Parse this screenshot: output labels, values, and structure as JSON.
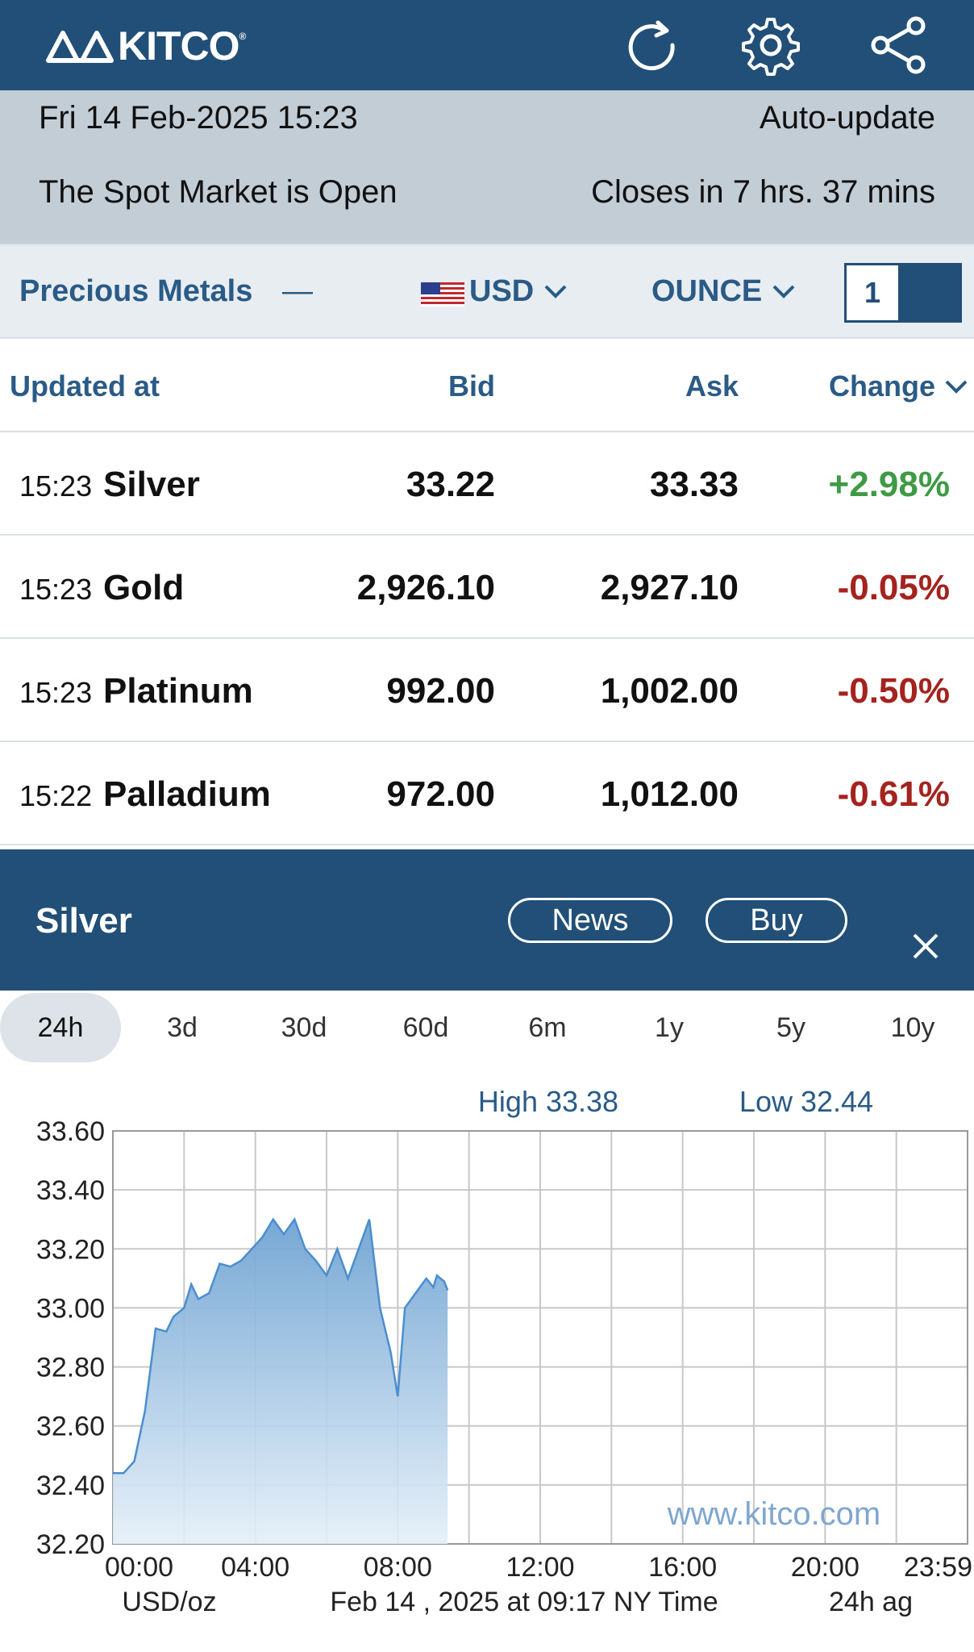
{
  "header": {
    "logo_text": "KITCO",
    "icons": [
      "refresh-icon",
      "gear-icon",
      "share-icon"
    ]
  },
  "status": {
    "datetime": "Fri 14 Feb-2025 15:23",
    "auto_update": "Auto-update",
    "market_status": "The Spot Market is Open",
    "closes_in": "Closes in 7 hrs. 37 mins"
  },
  "toolbar": {
    "category": "Precious Metals",
    "collapse_symbol": "—",
    "currency": "USD",
    "unit": "OUNCE",
    "quantity": "1"
  },
  "table": {
    "headers": {
      "updated": "Updated at",
      "bid": "Bid",
      "ask": "Ask",
      "change": "Change"
    },
    "rows": [
      {
        "time": "15:23",
        "name": "Silver",
        "bid": "33.22",
        "ask": "33.33",
        "change": "+2.98%",
        "direction": "up"
      },
      {
        "time": "15:23",
        "name": "Gold",
        "bid": "2,926.10",
        "ask": "2,927.10",
        "change": "-0.05%",
        "direction": "down"
      },
      {
        "time": "15:23",
        "name": "Platinum",
        "bid": "992.00",
        "ask": "1,002.00",
        "change": "-0.50%",
        "direction": "down"
      },
      {
        "time": "15:22",
        "name": "Palladium",
        "bid": "972.00",
        "ask": "1,012.00",
        "change": "-0.61%",
        "direction": "down"
      }
    ]
  },
  "detail": {
    "title": "Silver",
    "news_label": "News",
    "buy_label": "Buy"
  },
  "range_tabs": [
    "24h",
    "3d",
    "30d",
    "60d",
    "6m",
    "1y",
    "5y",
    "10y"
  ],
  "active_tab": "24h",
  "colors": {
    "header": "#224f78",
    "accent": "#2a5a86",
    "up": "#3f9a46",
    "down": "#a4231f",
    "area": "#6fa3d2"
  },
  "chart_data": {
    "type": "area",
    "high_label": "High 33.38",
    "low_label": "Low 32.44",
    "watermark": "www.kitco.com",
    "ylim": [
      32.2,
      33.6
    ],
    "y_ticks": [
      "33.60",
      "33.40",
      "33.20",
      "33.00",
      "32.80",
      "32.60",
      "32.40",
      "32.20"
    ],
    "x_tick_labels": [
      "00:00",
      "04:00",
      "08:00",
      "12:00",
      "16:00",
      "20:00",
      "23:59"
    ],
    "x_tick_hours": [
      0,
      4,
      8,
      12,
      16,
      20,
      24
    ],
    "xlim_hours": [
      0,
      24
    ],
    "footer_left": "USD/oz",
    "footer_center": "Feb 14 , 2025 at 09:17 NY Time",
    "footer_right": "24h ag",
    "series": [
      {
        "x": [
          0,
          0.3,
          0.6,
          0.9,
          1.2,
          1.5,
          1.7,
          2.0,
          2.2,
          2.4,
          2.7,
          3.0,
          3.3,
          3.6,
          3.9,
          4.2,
          4.5,
          4.8,
          5.1,
          5.4,
          5.7,
          6.0,
          6.3,
          6.6,
          6.9,
          7.2,
          7.5,
          7.8,
          8.0,
          8.2,
          8.5,
          8.8,
          9.0,
          9.1,
          9.3,
          9.4
        ],
        "y": [
          32.44,
          32.44,
          32.48,
          32.65,
          32.93,
          32.92,
          32.97,
          33.0,
          33.08,
          33.03,
          33.05,
          33.15,
          33.14,
          33.16,
          33.2,
          33.24,
          33.3,
          33.25,
          33.3,
          33.2,
          33.16,
          33.11,
          33.2,
          33.1,
          33.2,
          33.3,
          33.0,
          32.85,
          32.7,
          33.0,
          33.05,
          33.1,
          33.07,
          33.11,
          33.09,
          33.06
        ]
      }
    ]
  }
}
